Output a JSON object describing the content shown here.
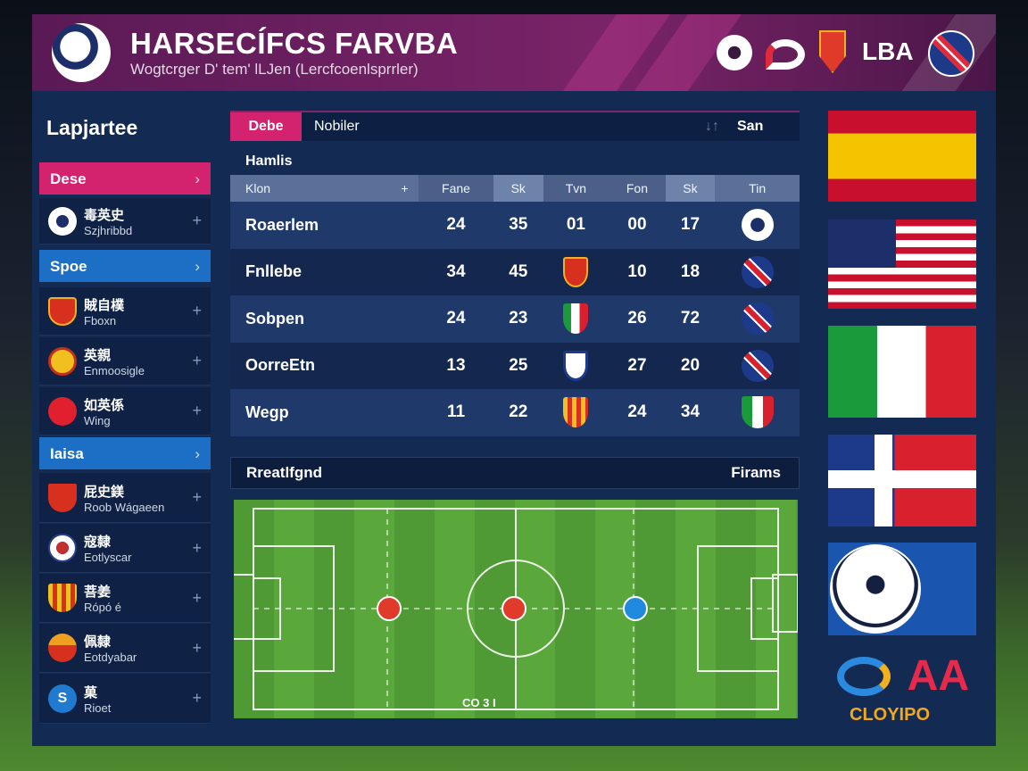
{
  "header": {
    "title": "HARSECÍFCS FARVBA",
    "subtitle": "Wogtcrger D' tem' lLJen (Lercfcoenlsprrler)",
    "partner_logos": [
      "ball-logo",
      "swoosh-logo",
      "shield-19-logo",
      "LBA",
      "union-jack-badge"
    ],
    "lba_text": "LBA"
  },
  "sidebar": {
    "title": "Lapjartee",
    "groups": [
      {
        "label": "Dese",
        "color": "#d3236e",
        "teams": [
          {
            "cn": "毒英史",
            "en": "Szjhribbd",
            "crest": "ball"
          }
        ]
      },
      {
        "label": "Spoe",
        "color": "#1c6fc4",
        "teams": [
          {
            "cn": "賊自樸",
            "en": "Fboxn",
            "crest": "red-shield"
          },
          {
            "cn": "英親",
            "en": "Enmoosigle",
            "crest": "yellow-crown"
          },
          {
            "cn": "如英係",
            "en": "Wing",
            "crest": "red-circle"
          }
        ]
      },
      {
        "label": "Iaisa",
        "color": "#1c6fc4",
        "teams": [
          {
            "cn": "屁史鎂",
            "en": "Roob Wágaeen",
            "crest": "red-crest"
          },
          {
            "cn": "寇隸",
            "en": "Eotlyscar",
            "crest": "white-badge"
          },
          {
            "cn": "菩姜",
            "en": "Rópó é",
            "crest": "striped-shield"
          },
          {
            "cn": "佩隸",
            "en": "Eotdyabar",
            "crest": "red-cross-crest"
          },
          {
            "cn": "菓",
            "en": "Rioet",
            "crest": "blue-s"
          }
        ]
      }
    ]
  },
  "search": {
    "tag": "Debe",
    "value": "Nobiler",
    "button": "San"
  },
  "table": {
    "title": "Hamlis",
    "columns": [
      "Klon",
      "+",
      "Fane",
      "Sk",
      "Tvn",
      "Fon",
      "Sk",
      "Tin"
    ],
    "rows": [
      {
        "name": "Roaerlem",
        "v": [
          "24",
          "35",
          "01",
          "00",
          "17"
        ],
        "icon": "ball"
      },
      {
        "name": "Fnllebe",
        "v": [
          "34",
          "45",
          "",
          "10",
          "18"
        ],
        "crest": "red-shield",
        "icon": "uk-flag"
      },
      {
        "name": "Sobpen",
        "v": [
          "24",
          "23",
          "",
          "26",
          "72"
        ],
        "crest": "italy-shield",
        "icon": "uk-flag"
      },
      {
        "name": "OorreEtn",
        "v": [
          "13",
          "25",
          "",
          "27",
          "20"
        ],
        "crest": "blue-white-shield",
        "icon": "uk-flag"
      },
      {
        "name": "Wegp",
        "v": [
          "11",
          "22",
          "",
          "24",
          "34"
        ],
        "crest": "striped-shield",
        "icon": "italy-shield"
      }
    ]
  },
  "section": {
    "left": "Rreatlfgnd",
    "right": "Firams"
  },
  "pitch": {
    "bottom_text": "CO 3 I"
  },
  "flags": [
    "spain",
    "usa",
    "italy",
    "red-white-blue-cross",
    "soccer-ball"
  ],
  "brand": {
    "mark": "AA",
    "name": "CLOYIPO"
  }
}
